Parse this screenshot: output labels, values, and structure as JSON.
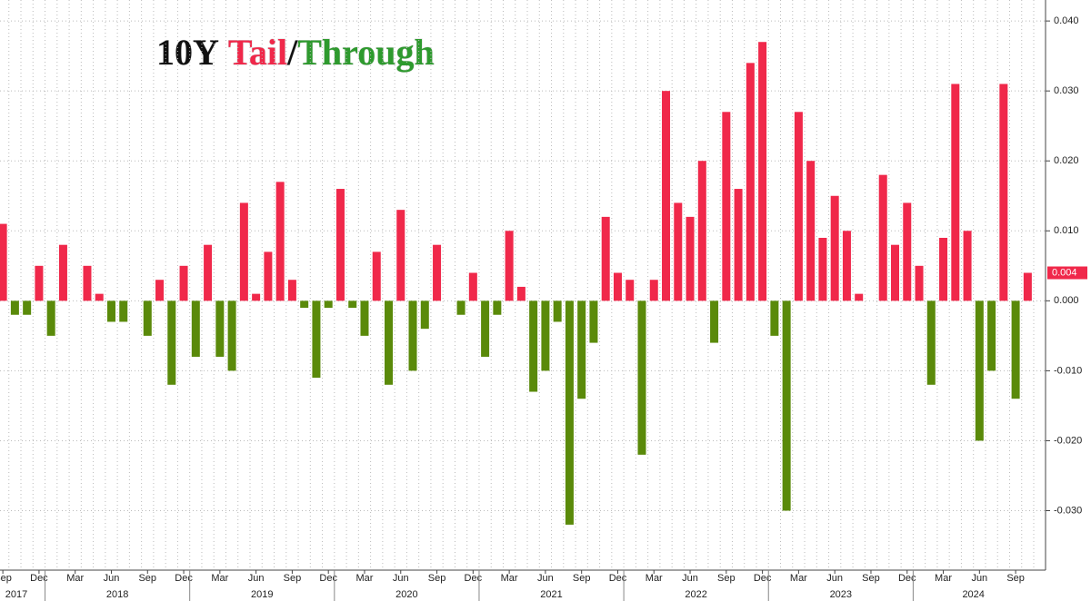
{
  "chart_data": {
    "type": "bar",
    "title_parts": [
      {
        "text": "10Y",
        "color": "#111111"
      },
      {
        "text": "Tail",
        "color": "#f0284a"
      },
      {
        "text": "/",
        "color": "#111111"
      },
      {
        "text": "Through",
        "color": "#2e9a2e"
      }
    ],
    "categories": [
      "Sep",
      null,
      null,
      "Dec",
      null,
      null,
      "Mar",
      null,
      null,
      "Jun",
      null,
      null,
      "Sep",
      null,
      null,
      "Dec",
      null,
      null,
      "Mar",
      null,
      null,
      "Jun",
      null,
      null,
      "Sep",
      null,
      null,
      "Dec",
      null,
      null,
      "Mar",
      null,
      null,
      "Jun",
      null,
      null,
      "Sep",
      null,
      null,
      "Dec",
      null,
      null,
      "Mar",
      null,
      null,
      "Jun",
      null,
      null,
      "Sep",
      null,
      null,
      "Dec",
      null,
      null,
      "Mar",
      null,
      null,
      "Jun",
      null,
      null,
      "Sep",
      null,
      null,
      "Dec",
      null,
      null,
      "Mar",
      null,
      null,
      "Jun",
      null,
      null,
      "Sep",
      null,
      null,
      "Dec",
      null,
      null,
      "Mar",
      null,
      null,
      "Jun",
      null,
      null,
      "Sep",
      null
    ],
    "years": [
      "2017",
      "2018",
      "2019",
      "2020",
      "2021",
      "2022",
      "2023",
      "2024"
    ],
    "values": [
      0.011,
      -0.002,
      -0.002,
      0.005,
      -0.005,
      0.008,
      0,
      0.005,
      0.001,
      -0.003,
      -0.003,
      0,
      -0.005,
      0.003,
      -0.012,
      0.005,
      -0.008,
      0.008,
      -0.008,
      -0.01,
      0.014,
      0.001,
      0.007,
      0.017,
      0.003,
      -0.001,
      -0.011,
      -0.001,
      0.016,
      -0.001,
      -0.005,
      0.007,
      -0.012,
      0.013,
      -0.01,
      -0.004,
      0.008,
      0,
      -0.002,
      0.004,
      -0.008,
      -0.002,
      0.01,
      0.002,
      -0.013,
      -0.01,
      -0.003,
      -0.032,
      -0.014,
      -0.006,
      0.012,
      0.004,
      0.003,
      -0.022,
      0.003,
      0.03,
      0.014,
      0.012,
      0.02,
      -0.006,
      0.027,
      0.016,
      0.034,
      0.037,
      -0.005,
      -0.03,
      0.027,
      0.02,
      0.009,
      0.015,
      0.01,
      0.001,
      0,
      0.018,
      0.008,
      0.014,
      0.005,
      -0.012,
      0.009,
      0.031,
      0.01,
      -0.02,
      -0.01,
      0.031,
      -0.014,
      0.004
    ],
    "value_labels": [
      null,
      null,
      null,
      null,
      null,
      null,
      null,
      null,
      null,
      null,
      null,
      null,
      null,
      null,
      null,
      null,
      null,
      null,
      null,
      null,
      null,
      null,
      null,
      null,
      null,
      null,
      null,
      null,
      null,
      null,
      null,
      null,
      null,
      null,
      null,
      null,
      null,
      null,
      null,
      null,
      null,
      null,
      null,
      null,
      null,
      null,
      null,
      null,
      null,
      null,
      null,
      null,
      null,
      null,
      null,
      null,
      null,
      null,
      null,
      null,
      null,
      null,
      null,
      null,
      null,
      null,
      null,
      null,
      null,
      null,
      null,
      null,
      null,
      null,
      null,
      null,
      null,
      null,
      null,
      null,
      null,
      null,
      null,
      null,
      null,
      "0.004"
    ],
    "positive_color": "#f0284a",
    "negative_color": "#5a8a0a",
    "ylim": [
      -0.0385,
      0.043
    ],
    "yticks": [
      {
        "value": -0.03,
        "label": "-0.030"
      },
      {
        "value": -0.02,
        "label": "-0.020"
      },
      {
        "value": -0.01,
        "label": "-0.010"
      },
      {
        "value": 0,
        "label": "0.000"
      },
      {
        "value": 0.01,
        "label": "0.010"
      },
      {
        "value": 0.02,
        "label": "0.020"
      },
      {
        "value": 0.03,
        "label": "0.030"
      },
      {
        "value": 0.04,
        "label": "0.040"
      }
    ],
    "grid": true
  }
}
